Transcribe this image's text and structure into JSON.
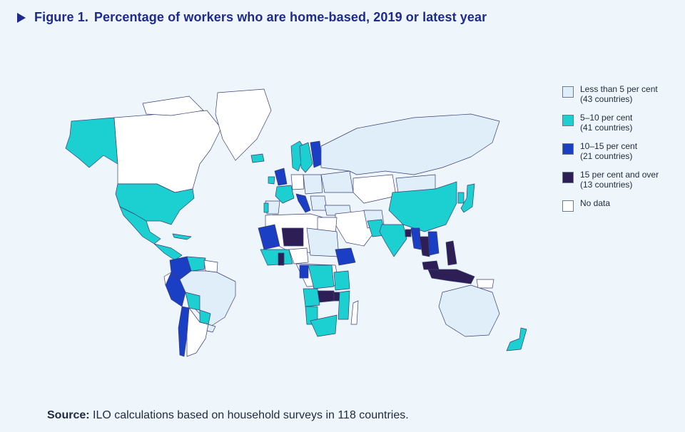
{
  "figure": {
    "number": "Figure 1.",
    "title": "Percentage of workers who are home-based, 2019 or latest year"
  },
  "colors": {
    "lt5": "#dfeef9",
    "c5_10": "#1ccfd1",
    "c10_15": "#1a3ec4",
    "c15plus": "#2d1f55",
    "nodata": "#ffffff",
    "border": "#3a3f73",
    "title": "#1e2a8c"
  },
  "legend": [
    {
      "key": "lt5",
      "line1": "Less than 5 per cent",
      "line2": "(43 countries)"
    },
    {
      "key": "c5_10",
      "line1": "5–10 per cent",
      "line2": "(41 countries)"
    },
    {
      "key": "c10_15",
      "line1": "10–15 per cent",
      "line2": "(21 countries)"
    },
    {
      "key": "c15plus",
      "line1": "15 per cent and over",
      "line2": "(13 countries)"
    },
    {
      "key": "nodata",
      "line1": "No data",
      "line2": ""
    }
  ],
  "source": {
    "label": "Source:",
    "text": " ILO calculations based on household surveys in 118 countries."
  }
}
